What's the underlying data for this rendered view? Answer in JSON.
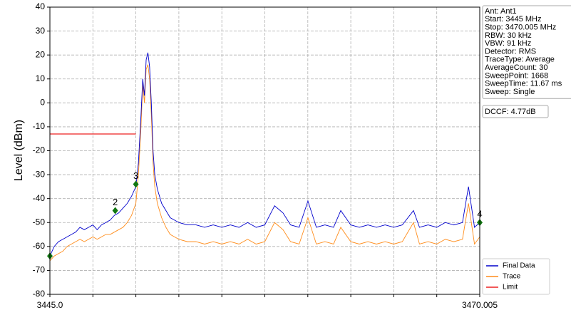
{
  "chart_data": {
    "type": "line",
    "ylabel": "Level (dBm)",
    "xlim": [
      3445.0,
      3470.005
    ],
    "ylim": [
      -80,
      40
    ],
    "xticks": [
      {
        "value": 3445.0,
        "label": "3445.0"
      },
      3470.005
    ],
    "yticks": [
      -80,
      -70,
      -60,
      -50,
      -40,
      -30,
      -20,
      -10,
      0,
      10,
      20,
      30,
      40
    ],
    "grid": true,
    "grid_divisions": 10,
    "legend": "lower right",
    "series": [
      {
        "name": "Final Data",
        "color": "#0000cc",
        "x": [
          3445.0,
          3445.25,
          3445.5,
          3445.75,
          3446.0,
          3446.25,
          3446.5,
          3446.75,
          3447.0,
          3447.25,
          3447.5,
          3447.75,
          3448.0,
          3448.25,
          3448.5,
          3448.75,
          3449.0,
          3449.25,
          3449.5,
          3449.75,
          3450.0,
          3450.15,
          3450.3,
          3450.4,
          3450.5,
          3450.6,
          3450.7,
          3450.8,
          3450.9,
          3451.0,
          3451.1,
          3451.25,
          3451.5,
          3451.75,
          3452.0,
          3452.5,
          3453.0,
          3453.5,
          3454.0,
          3454.5,
          3455.0,
          3455.5,
          3456.0,
          3456.5,
          3457.0,
          3457.5,
          3458.07,
          3458.56,
          3459.0,
          3459.5,
          3460.01,
          3460.5,
          3461.0,
          3461.5,
          3461.92,
          3462.5,
          3463.0,
          3463.5,
          3464.0,
          3464.5,
          3465.0,
          3465.5,
          3466.15,
          3466.5,
          3467.0,
          3467.5,
          3468.0,
          3468.5,
          3469.0,
          3469.35,
          3469.7,
          3470.005
        ],
        "values": [
          -64,
          -60,
          -58,
          -57,
          -56,
          -55,
          -54,
          -52,
          -53,
          -52,
          -51,
          -53,
          -51,
          -50,
          -49,
          -47,
          -46,
          -44,
          -42,
          -39,
          -35,
          -25,
          -5,
          10,
          3,
          18,
          21,
          15,
          0,
          -20,
          -30,
          -36,
          -42,
          -45,
          -48,
          -50,
          -51,
          -51,
          -52,
          -51,
          -52,
          -51,
          -52,
          -50,
          -52,
          -51,
          -43,
          -46,
          -51,
          -52,
          -41,
          -52,
          -51,
          -52,
          -45,
          -51,
          -52,
          -51,
          -52,
          -51,
          -52,
          -51,
          -45,
          -52,
          -51,
          -52,
          -50,
          -51,
          -50,
          -35,
          -52,
          -50
        ]
      },
      {
        "name": "Trace",
        "color": "#ff8c1a",
        "x": [
          3445.0,
          3445.25,
          3445.5,
          3445.75,
          3446.0,
          3446.25,
          3446.5,
          3446.75,
          3447.0,
          3447.25,
          3447.5,
          3447.75,
          3448.0,
          3448.25,
          3448.5,
          3448.75,
          3449.0,
          3449.25,
          3449.5,
          3449.75,
          3450.0,
          3450.15,
          3450.3,
          3450.4,
          3450.5,
          3450.6,
          3450.7,
          3450.8,
          3450.9,
          3451.0,
          3451.1,
          3451.25,
          3451.5,
          3451.75,
          3452.0,
          3452.5,
          3453.0,
          3453.5,
          3454.0,
          3454.5,
          3455.0,
          3455.5,
          3456.0,
          3456.5,
          3457.0,
          3457.5,
          3458.07,
          3458.56,
          3459.0,
          3459.5,
          3460.01,
          3460.5,
          3461.0,
          3461.5,
          3461.92,
          3462.5,
          3463.0,
          3463.5,
          3464.0,
          3464.5,
          3465.0,
          3465.5,
          3466.15,
          3466.5,
          3467.0,
          3467.5,
          3468.0,
          3468.5,
          3469.0,
          3469.35,
          3469.7,
          3470.005
        ],
        "values": [
          -66,
          -64,
          -63,
          -62,
          -60,
          -59,
          -58,
          -57,
          -58,
          -57,
          -56,
          -57,
          -56,
          -55,
          -55,
          -54,
          -53,
          -52,
          -50,
          -47,
          -42,
          -30,
          -10,
          8,
          0,
          14,
          16,
          10,
          -5,
          -25,
          -35,
          -42,
          -48,
          -52,
          -55,
          -57,
          -58,
          -58,
          -59,
          -58,
          -59,
          -58,
          -59,
          -57,
          -59,
          -58,
          -50,
          -53,
          -58,
          -59,
          -48,
          -59,
          -58,
          -59,
          -52,
          -58,
          -59,
          -58,
          -59,
          -58,
          -59,
          -58,
          -50,
          -59,
          -58,
          -59,
          -57,
          -58,
          -57,
          -42,
          -59,
          -56
        ]
      },
      {
        "name": "Limit",
        "color": "#ee2222",
        "x": [
          3445.0,
          3450.0
        ],
        "values": [
          -13,
          -13
        ]
      }
    ],
    "markers": {
      "color": "#117711",
      "x": [
        3445.0,
        3448.8,
        3450.0,
        3470.005
      ],
      "values": [
        -64,
        -45,
        -34,
        -50
      ],
      "labels": [
        null,
        "2",
        "3",
        "4"
      ]
    },
    "info": [
      "Ant: Ant1",
      "Start: 3445 MHz",
      "Stop: 3470.005 MHz",
      "RBW: 30 kHz",
      "VBW: 91 kHz",
      "Detector: RMS",
      "TraceType: Average",
      "AverageCount: 30",
      "SweepPoint: 1668",
      "SweepTime: 11.67 ms",
      "Sweep: Single"
    ],
    "dccf": "DCCF: 4.77dB"
  }
}
